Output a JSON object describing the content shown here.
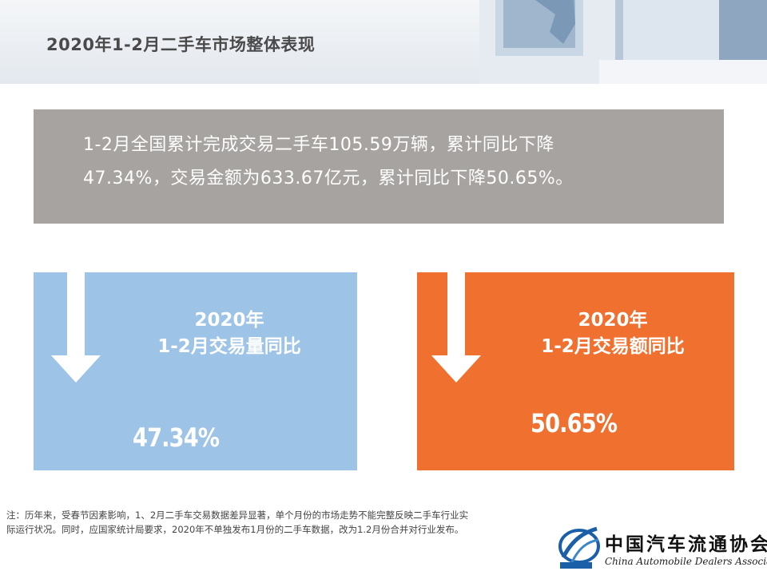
{
  "header": {
    "title": "2020年1-2月二手车市场整体表现"
  },
  "summary": {
    "line1": "1-2月全国累计完成交易二手车105.59万辆，累计同比下降",
    "line2": "47.34%，交易金额为633.67亿元，累计同比下降50.65%。"
  },
  "cards": [
    {
      "title_line1": "2020年",
      "title_line2": "1-2月交易量同比",
      "value": "47.34%",
      "color": "#9dc3e6",
      "icon": "down-arrow-icon"
    },
    {
      "title_line1": "2020年",
      "title_line2": "1-2月交易额同比",
      "value": "50.65%",
      "color": "#f07030",
      "icon": "down-arrow-icon"
    }
  ],
  "note": {
    "line1": "注：历年来，受春节因素影响，1、2月二手车交易数据差异显著，单个月份的市场走势不能完整反映二手车行业实",
    "line2": "际运行状况。同时，应国家统计局要求，2020年不单独发布1月份的二手车数据，改为1.2月份合并对行业发布。"
  },
  "logo": {
    "name_cn": "中国汽车流通协会",
    "name_en": "China Automobile Dealers Association"
  }
}
